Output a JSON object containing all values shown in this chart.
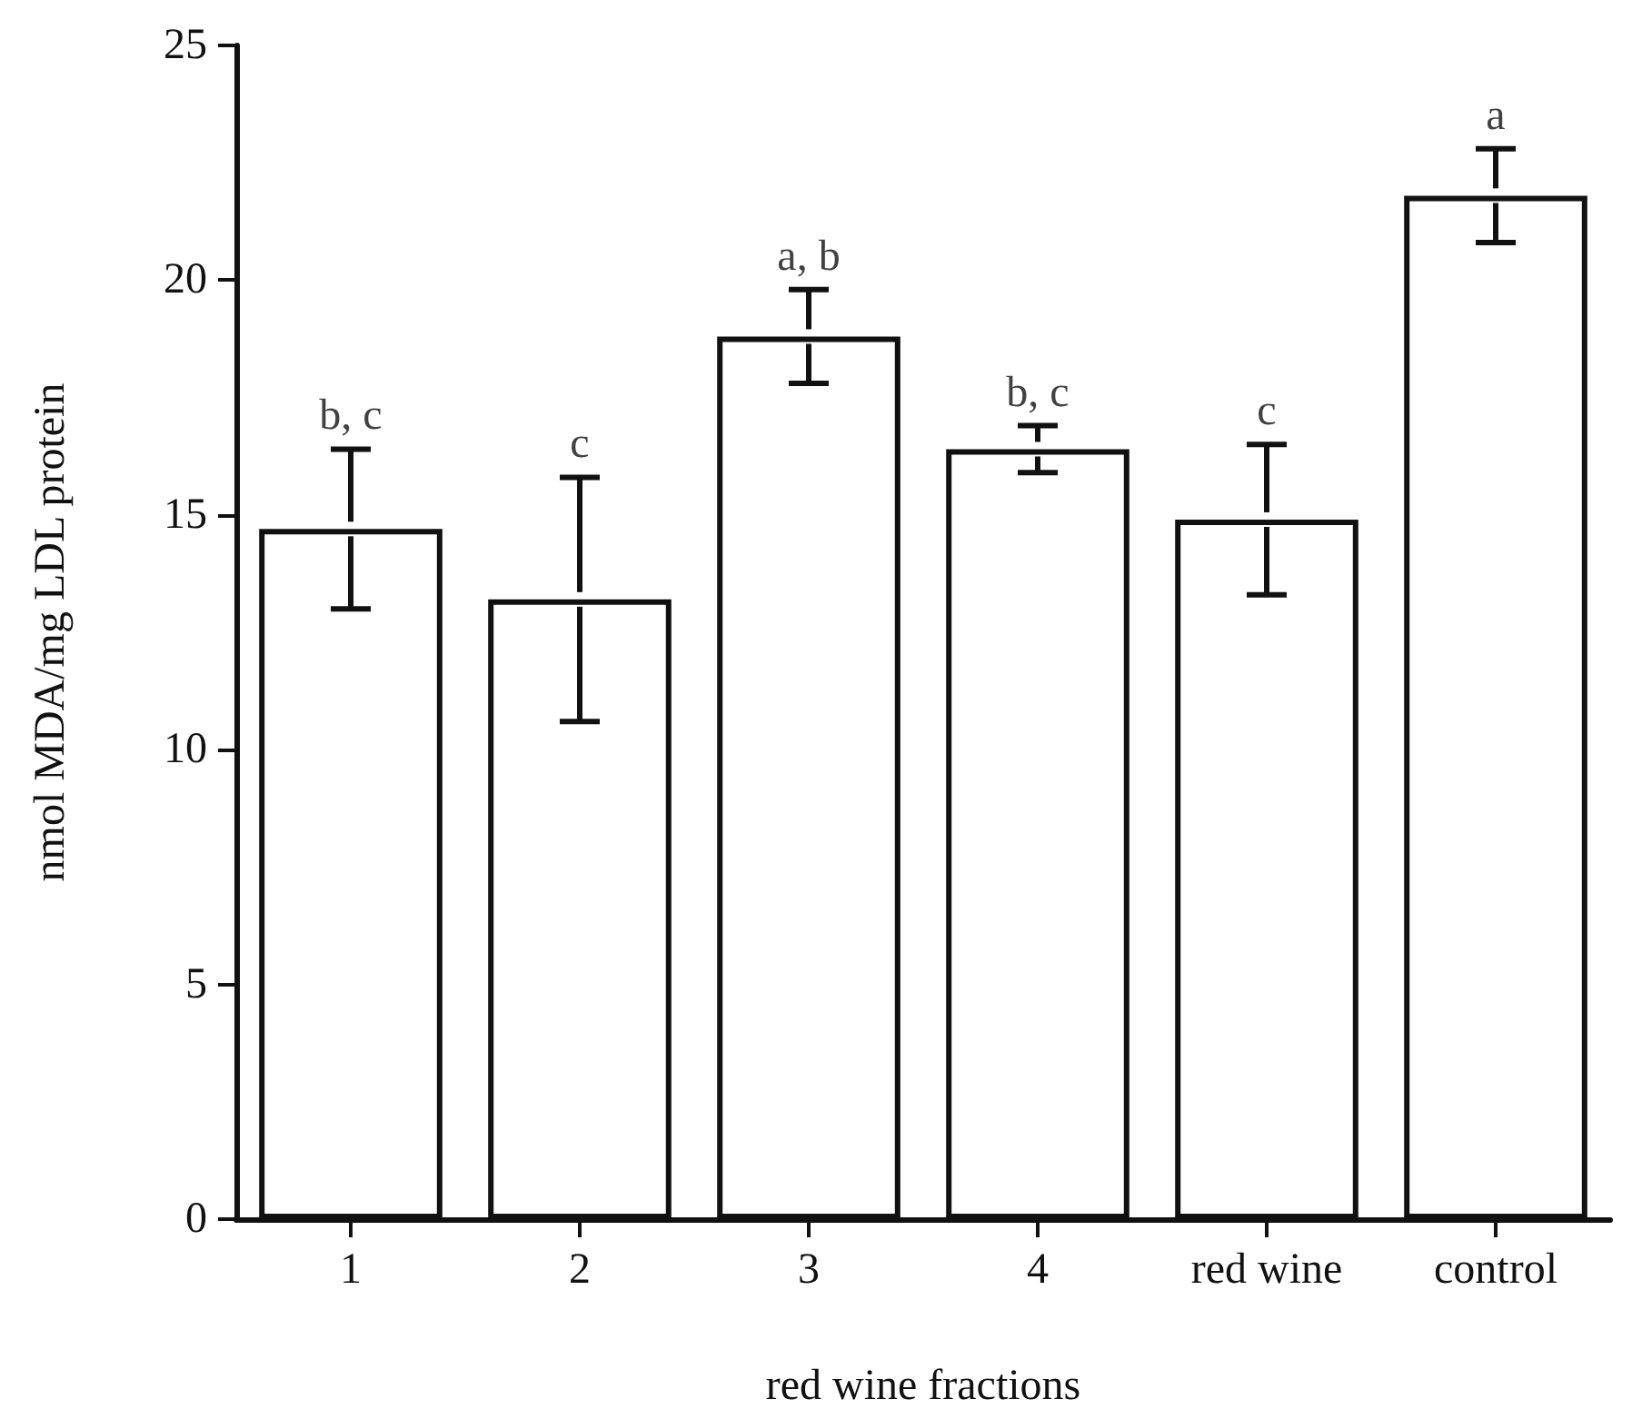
{
  "chart_data": {
    "type": "bar",
    "xlabel": "red wine fractions",
    "ylabel": "nmol MDA/mg LDL protein",
    "categories": [
      "1",
      "2",
      "3",
      "4",
      "red wine",
      "control"
    ],
    "values": [
      14.7,
      13.2,
      18.8,
      16.4,
      14.9,
      21.8
    ],
    "errors": [
      1.7,
      2.6,
      1.0,
      0.5,
      1.6,
      1.0
    ],
    "color": "#ffffff",
    "ylim": [
      0,
      25
    ],
    "yticks": [
      0,
      5,
      10,
      15,
      20,
      25
    ],
    "grid": false,
    "annotations": [
      {
        "text": "b, c",
        "x": "1",
        "y": 16.4
      },
      {
        "text": "c",
        "x": "2",
        "y": 15.8
      },
      {
        "text": "a, b",
        "x": "3",
        "y": 19.8
      },
      {
        "text": "b, c",
        "x": "4",
        "y": 16.9
      },
      {
        "text": "c",
        "x": "red wine",
        "y": 16.5
      },
      {
        "text": "a",
        "x": "control",
        "y": 22.8
      }
    ]
  }
}
